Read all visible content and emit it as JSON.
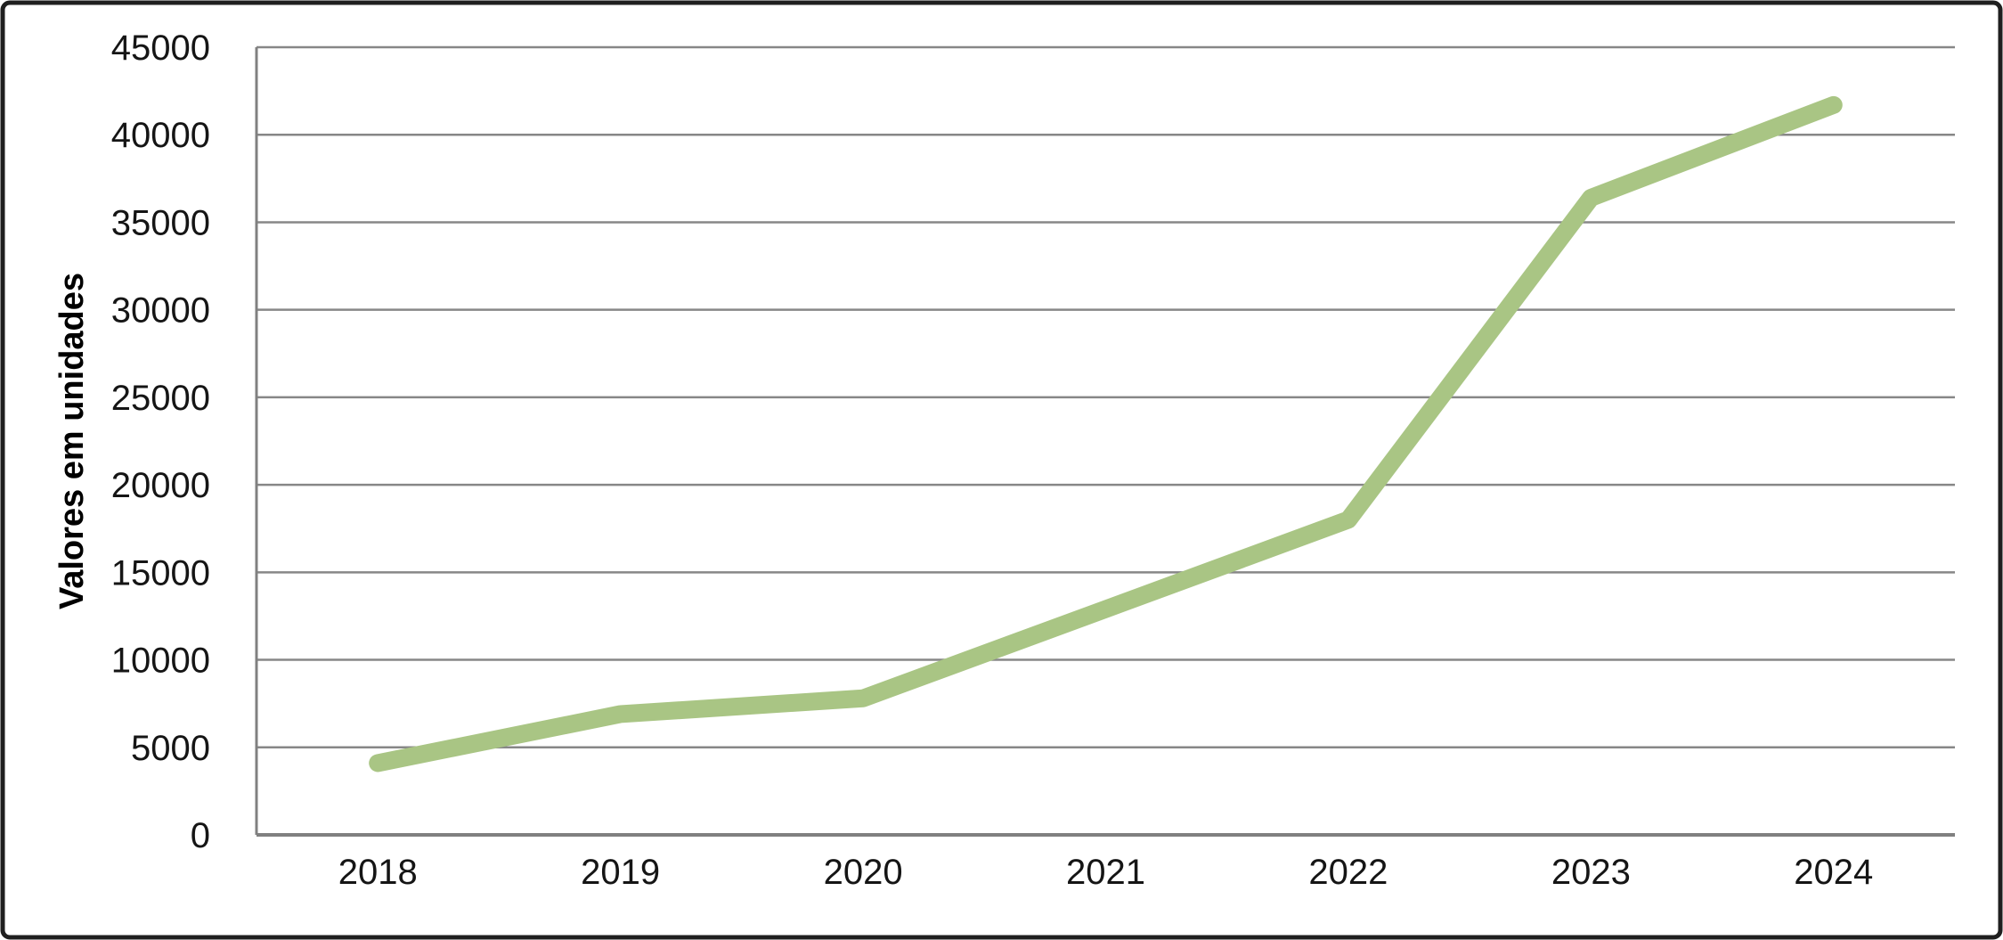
{
  "chart_data": {
    "type": "line",
    "title": "",
    "xlabel": "",
    "ylabel": "Valores em unidades",
    "categories": [
      "2018",
      "2019",
      "2020",
      "2021",
      "2022",
      "2023",
      "2024"
    ],
    "series": [
      {
        "name": "Valores",
        "values": [
          4100,
          6900,
          7800,
          12900,
          18000,
          36400,
          41700
        ]
      }
    ],
    "ylim": [
      0,
      45000
    ],
    "ytick_step": 5000,
    "yticks": [
      0,
      5000,
      10000,
      15000,
      20000,
      25000,
      30000,
      35000,
      40000,
      45000
    ],
    "grid": true,
    "legend": "none",
    "colors": {
      "line": "#a9c584",
      "gridline": "#878787",
      "axis": "#808080",
      "text": "#151515",
      "frame_border": "#1f1f1f",
      "background": "#ffffff"
    }
  }
}
